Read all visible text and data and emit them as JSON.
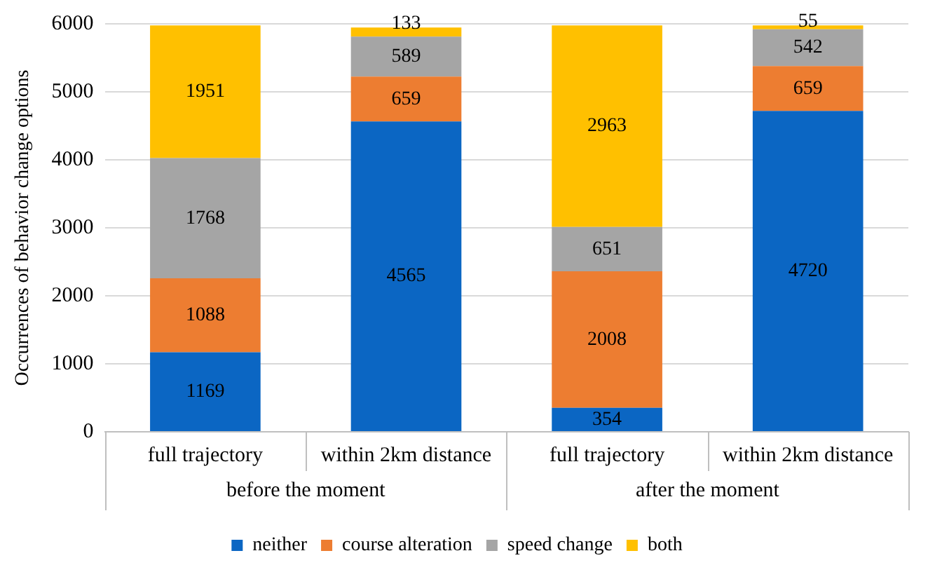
{
  "chart_data": {
    "type": "bar",
    "stacked": true,
    "ylabel": "Occurrences of behavior change options",
    "categories": [
      "full trajectory",
      "within 2km distance",
      "full trajectory",
      "within 2km distance"
    ],
    "series": [
      {
        "name": "neither",
        "color": "#0b66c3",
        "values": [
          1169,
          4565,
          354,
          4720
        ]
      },
      {
        "name": "course alteration",
        "color": "#ed7d31",
        "values": [
          1088,
          659,
          2008,
          659
        ]
      },
      {
        "name": "speed change",
        "color": "#a5a5a5",
        "values": [
          1768,
          589,
          651,
          542
        ]
      },
      {
        "name": "both",
        "color": "#ffc000",
        "values": [
          1951,
          133,
          2963,
          55
        ]
      }
    ],
    "ylim": [
      0,
      6000
    ],
    "yticks": [
      0,
      1000,
      2000,
      3000,
      4000,
      5000,
      6000
    ],
    "grid": "y",
    "legend": "bottom",
    "data_labels": true,
    "annotations": [
      "before the moment",
      "after the moment"
    ]
  }
}
